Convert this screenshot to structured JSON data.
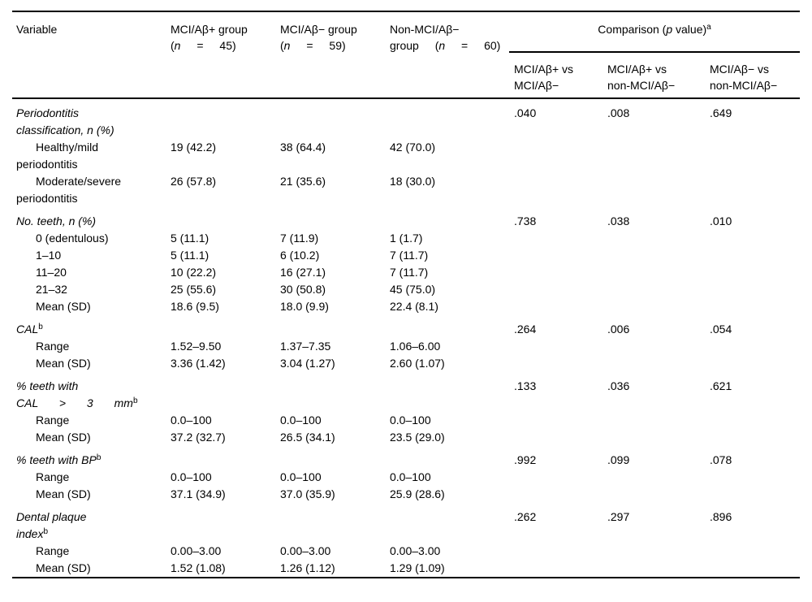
{
  "table": {
    "header": {
      "variable_label": "Variable",
      "groups": [
        {
          "lines": [
            {
              "text": "MCI/Aβ+ group"
            },
            {
              "text": "(n = 45)",
              "spread": true
            }
          ]
        },
        {
          "lines": [
            {
              "text": "MCI/Aβ− group"
            },
            {
              "text": "(n = 59)",
              "spread": true
            }
          ]
        },
        {
          "lines": [
            {
              "text": "Non-MCI/Aβ−"
            },
            {
              "text": "group (n = 60)",
              "spread": true
            }
          ]
        }
      ],
      "comparison": {
        "text": "Comparison (p value)",
        "sup": "a"
      },
      "subheaders": [
        {
          "lines": [
            {
              "text": "MCI/Aβ+ vs"
            },
            {
              "text": "MCI/Aβ−"
            }
          ]
        },
        {
          "lines": [
            {
              "text": "MCI/Aβ+ vs"
            },
            {
              "text": "non-MCI/Aβ−"
            }
          ]
        },
        {
          "lines": [
            {
              "text": "MCI/Aβ− vs"
            },
            {
              "text": "non-MCI/Aβ−"
            }
          ]
        }
      ]
    },
    "rows": [
      {
        "category": true,
        "label": [
          {
            "text": "Periodontitis"
          },
          {
            "text": "classification, n (%)"
          }
        ],
        "values": [
          "",
          "",
          ""
        ],
        "pvalues": [
          ".040",
          ".008",
          ".649"
        ]
      },
      {
        "category": false,
        "label": [
          {
            "text": "Healthy/mild"
          },
          {
            "text": "periodontitis"
          }
        ],
        "values": [
          "19 (42.2)",
          "38 (64.4)",
          "42 (70.0)"
        ],
        "pvalues": [
          "",
          "",
          ""
        ]
      },
      {
        "category": false,
        "label": [
          {
            "text": "Moderate/severe"
          },
          {
            "text": "periodontitis"
          }
        ],
        "values": [
          "26 (57.8)",
          "21 (35.6)",
          "18 (30.0)"
        ],
        "pvalues": [
          "",
          "",
          ""
        ]
      },
      {
        "category": true,
        "label": [
          {
            "text": "No. teeth, n (%)"
          }
        ],
        "values": [
          "",
          "",
          ""
        ],
        "pvalues": [
          ".738",
          ".038",
          ".010"
        ]
      },
      {
        "category": false,
        "label": [
          {
            "text": "0 (edentulous)"
          }
        ],
        "values": [
          "5 (11.1)",
          "7 (11.9)",
          "1 (1.7)"
        ],
        "pvalues": [
          "",
          "",
          ""
        ]
      },
      {
        "category": false,
        "label": [
          {
            "text": "1–10"
          }
        ],
        "values": [
          "5 (11.1)",
          "6 (10.2)",
          "7 (11.7)"
        ],
        "pvalues": [
          "",
          "",
          ""
        ]
      },
      {
        "category": false,
        "label": [
          {
            "text": "11–20"
          }
        ],
        "values": [
          "10 (22.2)",
          "16 (27.1)",
          "7 (11.7)"
        ],
        "pvalues": [
          "",
          "",
          ""
        ]
      },
      {
        "category": false,
        "label": [
          {
            "text": "21–32"
          }
        ],
        "values": [
          "25 (55.6)",
          "30 (50.8)",
          "45 (75.0)"
        ],
        "pvalues": [
          "",
          "",
          ""
        ]
      },
      {
        "category": false,
        "label": [
          {
            "text": "Mean (SD)"
          }
        ],
        "values": [
          "18.6 (9.5)",
          "18.0 (9.9)",
          "22.4 (8.1)"
        ],
        "pvalues": [
          "",
          "",
          ""
        ]
      },
      {
        "category": true,
        "label": [
          {
            "text": "CAL",
            "sup": "b"
          }
        ],
        "values": [
          "",
          "",
          ""
        ],
        "pvalues": [
          ".264",
          ".006",
          ".054"
        ]
      },
      {
        "category": false,
        "label": [
          {
            "text": "Range"
          }
        ],
        "values": [
          "1.52–9.50",
          "1.37–7.35",
          "1.06–6.00"
        ],
        "pvalues": [
          "",
          "",
          ""
        ]
      },
      {
        "category": false,
        "label": [
          {
            "text": "Mean (SD)"
          }
        ],
        "values": [
          "3.36 (1.42)",
          "3.04 (1.27)",
          "2.60 (1.07)"
        ],
        "pvalues": [
          "",
          "",
          ""
        ]
      },
      {
        "category": true,
        "label": [
          {
            "text": "% teeth with"
          },
          {
            "text": "CAL > 3 mm",
            "sup": "b",
            "spread": true
          }
        ],
        "values": [
          "",
          "",
          ""
        ],
        "pvalues": [
          ".133",
          ".036",
          ".621"
        ]
      },
      {
        "category": false,
        "label": [
          {
            "text": "Range"
          }
        ],
        "values": [
          "0.0–100",
          "0.0–100",
          "0.0–100"
        ],
        "pvalues": [
          "",
          "",
          ""
        ]
      },
      {
        "category": false,
        "label": [
          {
            "text": "Mean (SD)"
          }
        ],
        "values": [
          "37.2 (32.7)",
          "26.5 (34.1)",
          "23.5 (29.0)"
        ],
        "pvalues": [
          "",
          "",
          ""
        ]
      },
      {
        "category": true,
        "label": [
          {
            "text": "% teeth with BP",
            "sup": "b"
          }
        ],
        "values": [
          "",
          "",
          ""
        ],
        "pvalues": [
          ".992",
          ".099",
          ".078"
        ]
      },
      {
        "category": false,
        "label": [
          {
            "text": "Range"
          }
        ],
        "values": [
          "0.0–100",
          "0.0–100",
          "0.0–100"
        ],
        "pvalues": [
          "",
          "",
          ""
        ]
      },
      {
        "category": false,
        "label": [
          {
            "text": "Mean (SD)"
          }
        ],
        "values": [
          "37.1 (34.9)",
          "37.0 (35.9)",
          "25.9 (28.6)"
        ],
        "pvalues": [
          "",
          "",
          ""
        ]
      },
      {
        "category": true,
        "label": [
          {
            "text": "Dental plaque"
          },
          {
            "text": "index",
            "sup": "b"
          }
        ],
        "values": [
          "",
          "",
          ""
        ],
        "pvalues": [
          ".262",
          ".297",
          ".896"
        ]
      },
      {
        "category": false,
        "label": [
          {
            "text": "Range"
          }
        ],
        "values": [
          "0.00–3.00",
          "0.00–3.00",
          "0.00–3.00"
        ],
        "pvalues": [
          "",
          "",
          ""
        ]
      },
      {
        "category": false,
        "label": [
          {
            "text": "Mean (SD)"
          }
        ],
        "values": [
          "1.52 (1.08)",
          "1.26 (1.12)",
          "1.29 (1.09)"
        ],
        "pvalues": [
          "",
          "",
          ""
        ]
      }
    ]
  }
}
